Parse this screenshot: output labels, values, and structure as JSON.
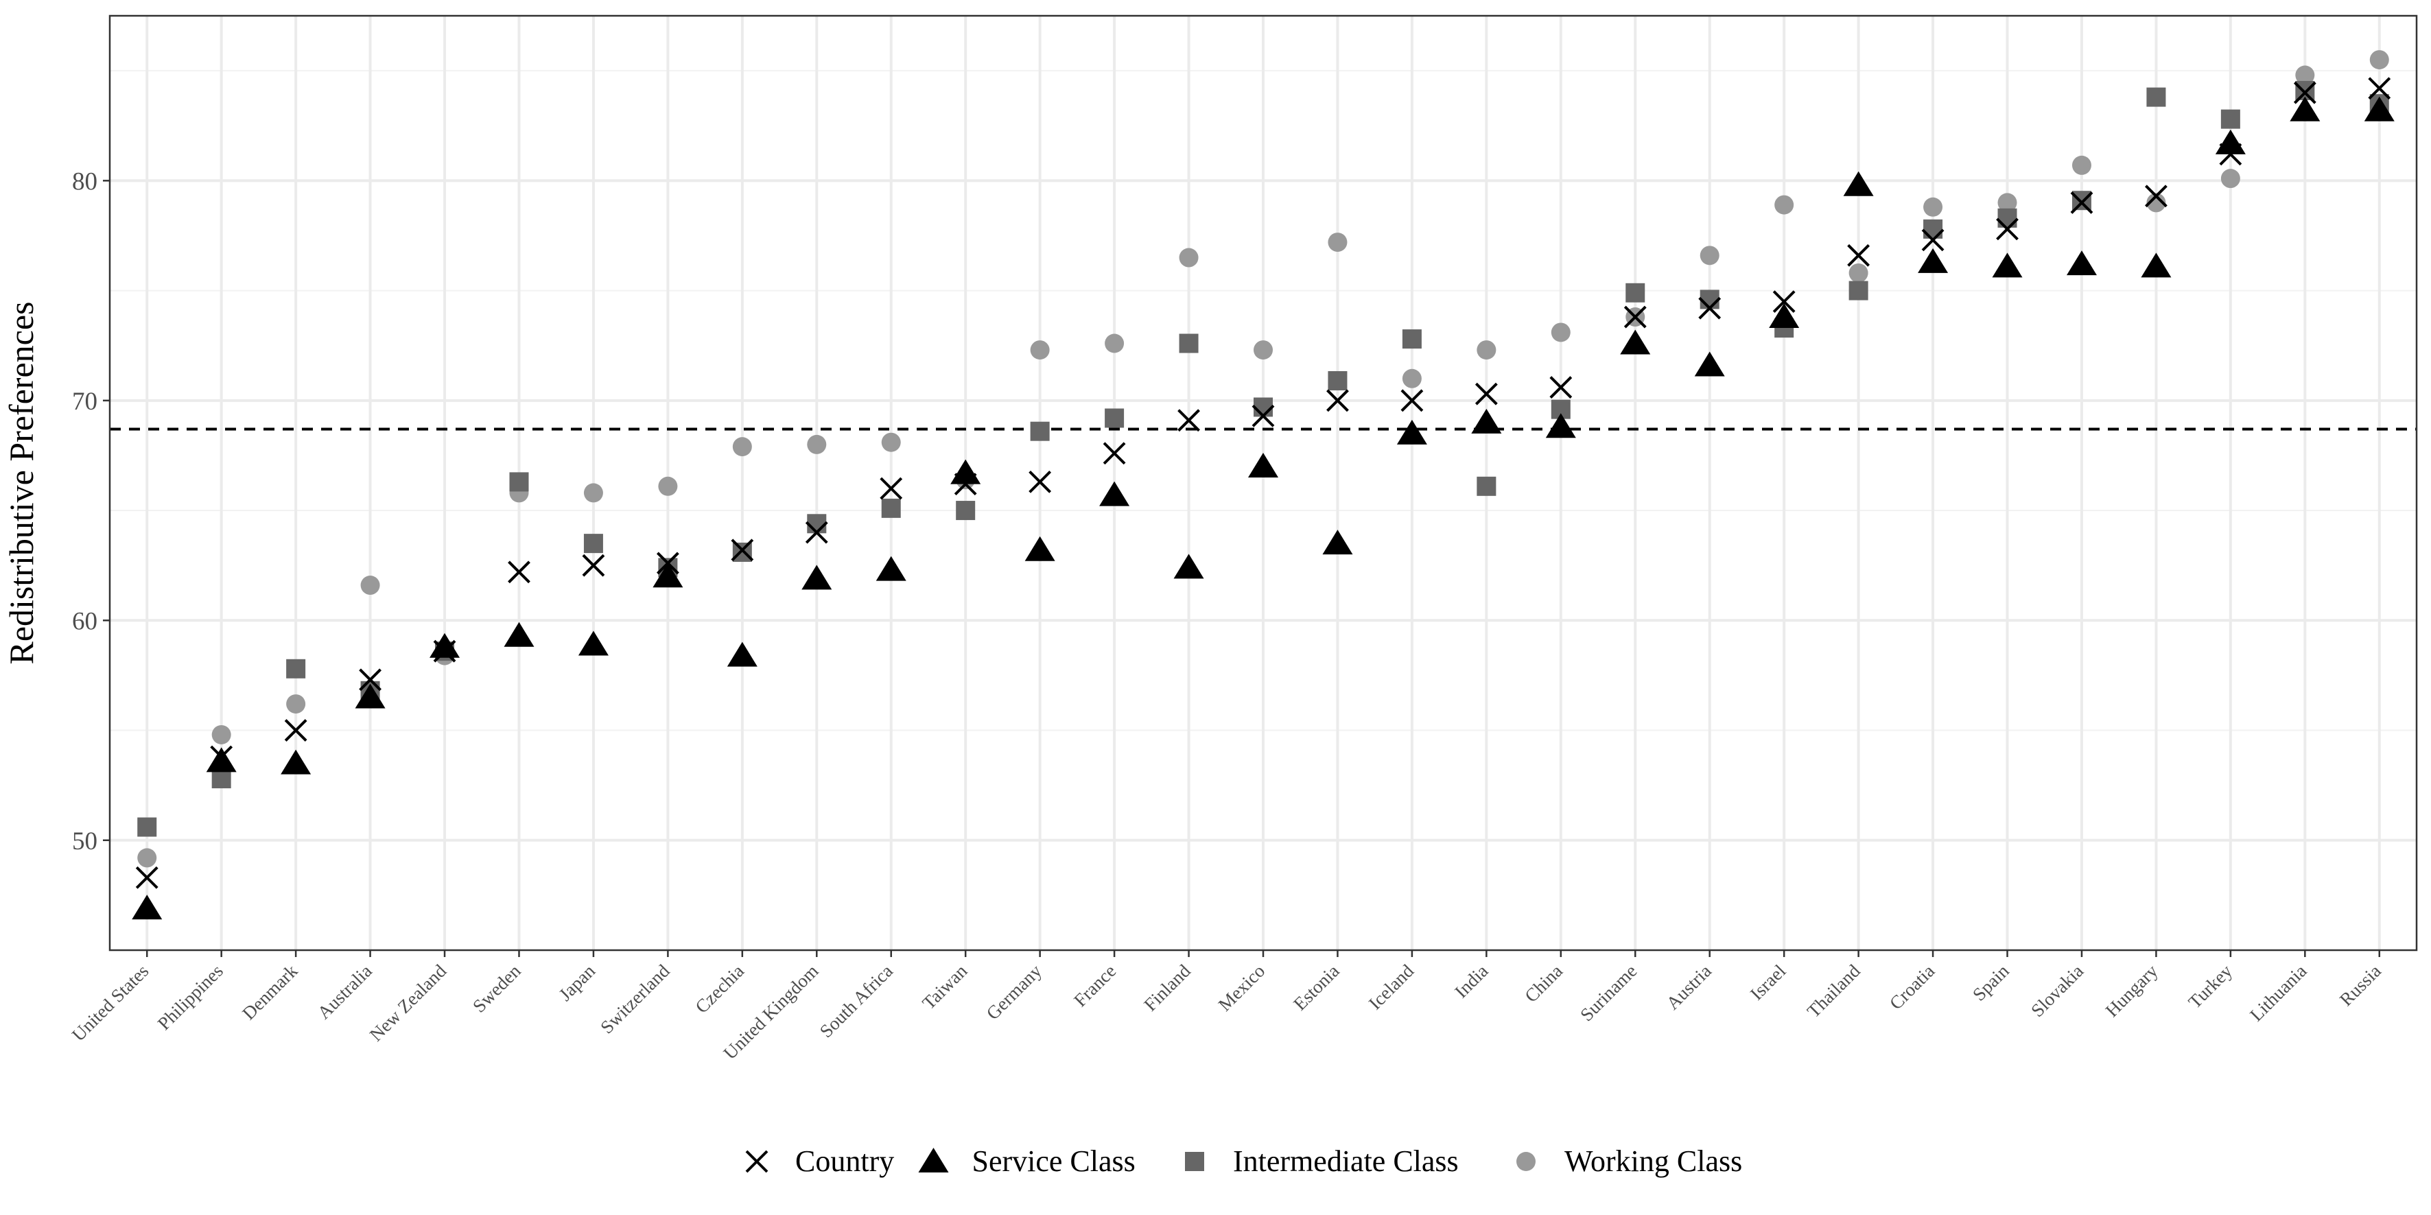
{
  "chart_data": {
    "type": "scatter",
    "title": "",
    "xlabel": "",
    "ylabel": "Redistributive Preferences",
    "ylim": [
      45,
      87.5
    ],
    "yticks": [
      50,
      60,
      70,
      80
    ],
    "grid": true,
    "legend_position": "bottom",
    "reference_line": {
      "y": 68.7,
      "style": "dashed"
    },
    "categories": [
      "United States",
      "Philippines",
      "Denmark",
      "Australia",
      "New Zealand",
      "Sweden",
      "Japan",
      "Switzerland",
      "Czechia",
      "United Kingdom",
      "South Africa",
      "Taiwan",
      "Germany",
      "France",
      "Finland",
      "Mexico",
      "Estonia",
      "Iceland",
      "India",
      "China",
      "Suriname",
      "Austria",
      "Israel",
      "Thailand",
      "Croatia",
      "Spain",
      "Slovakia",
      "Hungary",
      "Turkey",
      "Lithuania",
      "Russia"
    ],
    "series": [
      {
        "name": "Country",
        "marker": "cross",
        "color": "#000000",
        "values": [
          48.3,
          53.8,
          55.0,
          57.3,
          58.6,
          62.2,
          62.5,
          62.6,
          63.2,
          64.0,
          66.0,
          66.2,
          66.3,
          67.6,
          69.1,
          69.3,
          70.0,
          70.0,
          70.3,
          70.6,
          73.8,
          74.2,
          74.5,
          76.6,
          77.3,
          77.8,
          79.0,
          79.3,
          81.2,
          84.0,
          84.2
        ]
      },
      {
        "name": "Service Class",
        "marker": "triangle",
        "color": "#000000",
        "values": [
          46.9,
          53.6,
          53.5,
          56.5,
          58.8,
          59.3,
          58.9,
          62.0,
          58.4,
          61.9,
          62.3,
          66.7,
          63.2,
          65.7,
          62.4,
          67.0,
          63.5,
          68.5,
          69.0,
          68.8,
          72.6,
          71.6,
          73.8,
          79.8,
          76.3,
          76.1,
          76.2,
          76.1,
          81.7,
          83.2,
          83.2
        ]
      },
      {
        "name": "Intermediate Class",
        "marker": "square",
        "color": "#666666",
        "values": [
          50.6,
          52.8,
          57.8,
          56.8,
          58.6,
          66.3,
          63.5,
          62.4,
          63.1,
          64.4,
          65.1,
          65.0,
          68.6,
          69.2,
          72.6,
          69.7,
          70.9,
          72.8,
          66.1,
          69.6,
          74.9,
          74.6,
          73.3,
          75.0,
          77.8,
          78.3,
          79.1,
          83.8,
          82.8,
          84.1,
          83.5
        ]
      },
      {
        "name": "Working Class",
        "marker": "circle",
        "color": "#999999",
        "values": [
          49.2,
          54.8,
          56.2,
          61.6,
          58.4,
          65.8,
          65.8,
          66.1,
          67.9,
          68.0,
          68.1,
          66.4,
          72.3,
          72.6,
          76.5,
          72.3,
          77.2,
          71.0,
          72.3,
          73.1,
          73.8,
          76.6,
          78.9,
          75.8,
          78.8,
          79.0,
          80.7,
          79.0,
          80.1,
          84.8,
          85.5
        ]
      }
    ]
  }
}
